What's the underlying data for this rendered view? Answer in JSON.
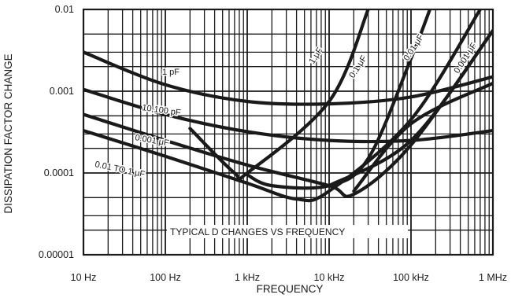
{
  "chart_data": {
    "type": "line",
    "title": "",
    "xlabel": "FREQUENCY",
    "ylabel": "DISSIPATION FACTOR CHANGE",
    "x_scale": "log",
    "y_scale": "log",
    "xlim": [
      10,
      1000000
    ],
    "ylim": [
      1e-05,
      0.01
    ],
    "grid": true,
    "annotation": "TYPICAL D CHANGES VS FREQUENCY",
    "x_ticks": [
      {
        "value": 10,
        "label": "10 Hz"
      },
      {
        "value": 100,
        "label": "100 Hz"
      },
      {
        "value": 1000,
        "label": "1 kHz"
      },
      {
        "value": 10000,
        "label": "10 kHz"
      },
      {
        "value": 100000,
        "label": "100 kHz"
      },
      {
        "value": 1000000,
        "label": "1 MHz"
      }
    ],
    "y_ticks": [
      {
        "value": 0.01,
        "label": "0.01"
      },
      {
        "value": 0.001,
        "label": "0.001"
      },
      {
        "value": 0.0001,
        "label": "0.0001"
      },
      {
        "value": 1e-05,
        "label": "0.00001"
      }
    ],
    "series": [
      {
        "name": "1 pF",
        "points": [
          [
            10,
            0.003
          ],
          [
            100,
            0.0012
          ],
          [
            1000,
            0.00075
          ],
          [
            10000,
            0.0007
          ],
          [
            100000,
            0.00085
          ],
          [
            1000000,
            0.0015
          ]
        ]
      },
      {
        "name": "10,100 pF",
        "points": [
          [
            10,
            0.00105
          ],
          [
            100,
            0.00052
          ],
          [
            1000,
            0.00032
          ],
          [
            10000,
            0.00025
          ],
          [
            100000,
            0.00025
          ],
          [
            1000000,
            0.00033
          ]
        ]
      },
      {
        "name": "0.001 μF",
        "points": [
          [
            10,
            0.00052
          ],
          [
            100,
            0.00025
          ],
          [
            1000,
            0.000125
          ],
          [
            10000,
            7e-05
          ],
          [
            20000,
            5.5e-05
          ],
          [
            100000,
            0.00022
          ],
          [
            1000000,
            0.0055
          ]
        ]
      },
      {
        "name": "0.01 TO 1 μF",
        "points": [
          [
            10,
            0.00033
          ],
          [
            100,
            0.00016
          ],
          [
            1000,
            7.5e-05
          ],
          [
            4000,
            4.8e-05
          ],
          [
            10000,
            6e-05
          ],
          [
            100000,
            0.00045
          ],
          [
            700000,
            0.01
          ]
        ]
      },
      {
        "name": "1 μF",
        "points": [
          [
            200,
            0.00035
          ],
          [
            700,
            0.0001
          ],
          [
            1000,
            0.0001
          ],
          [
            10000,
            0.00075
          ],
          [
            30000,
            0.01
          ]
        ]
      },
      {
        "name": "0.1 μF",
        "points": [
          [
            1000,
            9.5e-05
          ],
          [
            2000,
            7e-05
          ],
          [
            10000,
            7e-05
          ],
          [
            30000,
            0.00015
          ],
          [
            100000,
            0.0025
          ],
          [
            170000,
            0.01
          ]
        ]
      },
      {
        "name": "0.01 μF",
        "points": [
          [
            20000,
            6e-05
          ],
          [
            100000,
            0.0004
          ],
          [
            1000000,
            0.00125
          ]
        ]
      },
      {
        "name": "0.001 μF",
        "points": [
          [
            10000,
            7e-05
          ],
          [
            100000,
            0.00025
          ],
          [
            1000000,
            0.0055
          ]
        ]
      }
    ]
  }
}
